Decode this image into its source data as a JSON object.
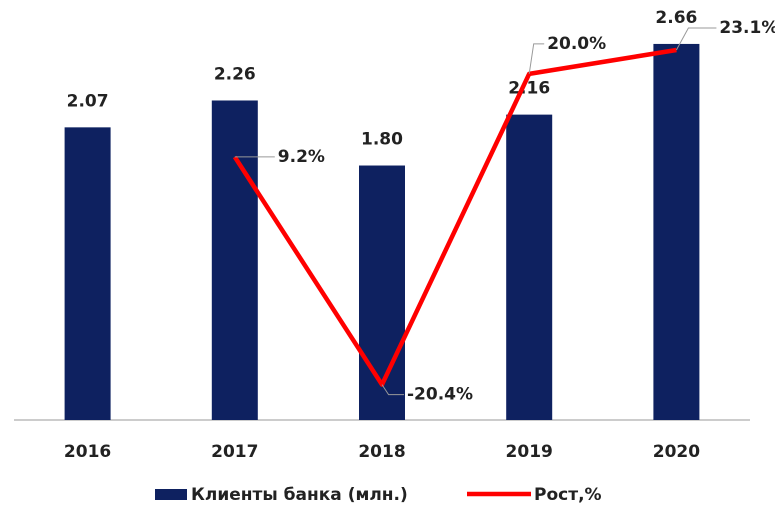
{
  "chart_data": {
    "type": "bar",
    "categories": [
      "2016",
      "2017",
      "2018",
      "2019",
      "2020"
    ],
    "series": [
      {
        "name": "Клиенты банка (млн.)",
        "color": "#0e2160",
        "type": "bar",
        "values": [
          2.07,
          2.26,
          1.8,
          2.16,
          2.66
        ],
        "value_labels": [
          "2.07",
          "2.26",
          "1.80",
          "2.16",
          "2.66"
        ]
      },
      {
        "name": "Рост,%",
        "color": "#ff0000",
        "type": "line",
        "axis": "y2",
        "values": [
          null,
          9.2,
          -20.4,
          20.0,
          23.1
        ],
        "value_labels": [
          null,
          "9.2%",
          "-20.4%",
          "20.0%",
          "23.1%"
        ]
      }
    ],
    "ylim": [
      0,
      2.9
    ],
    "y2lim": [
      -25,
      28.3
    ],
    "legend": "bottom"
  }
}
